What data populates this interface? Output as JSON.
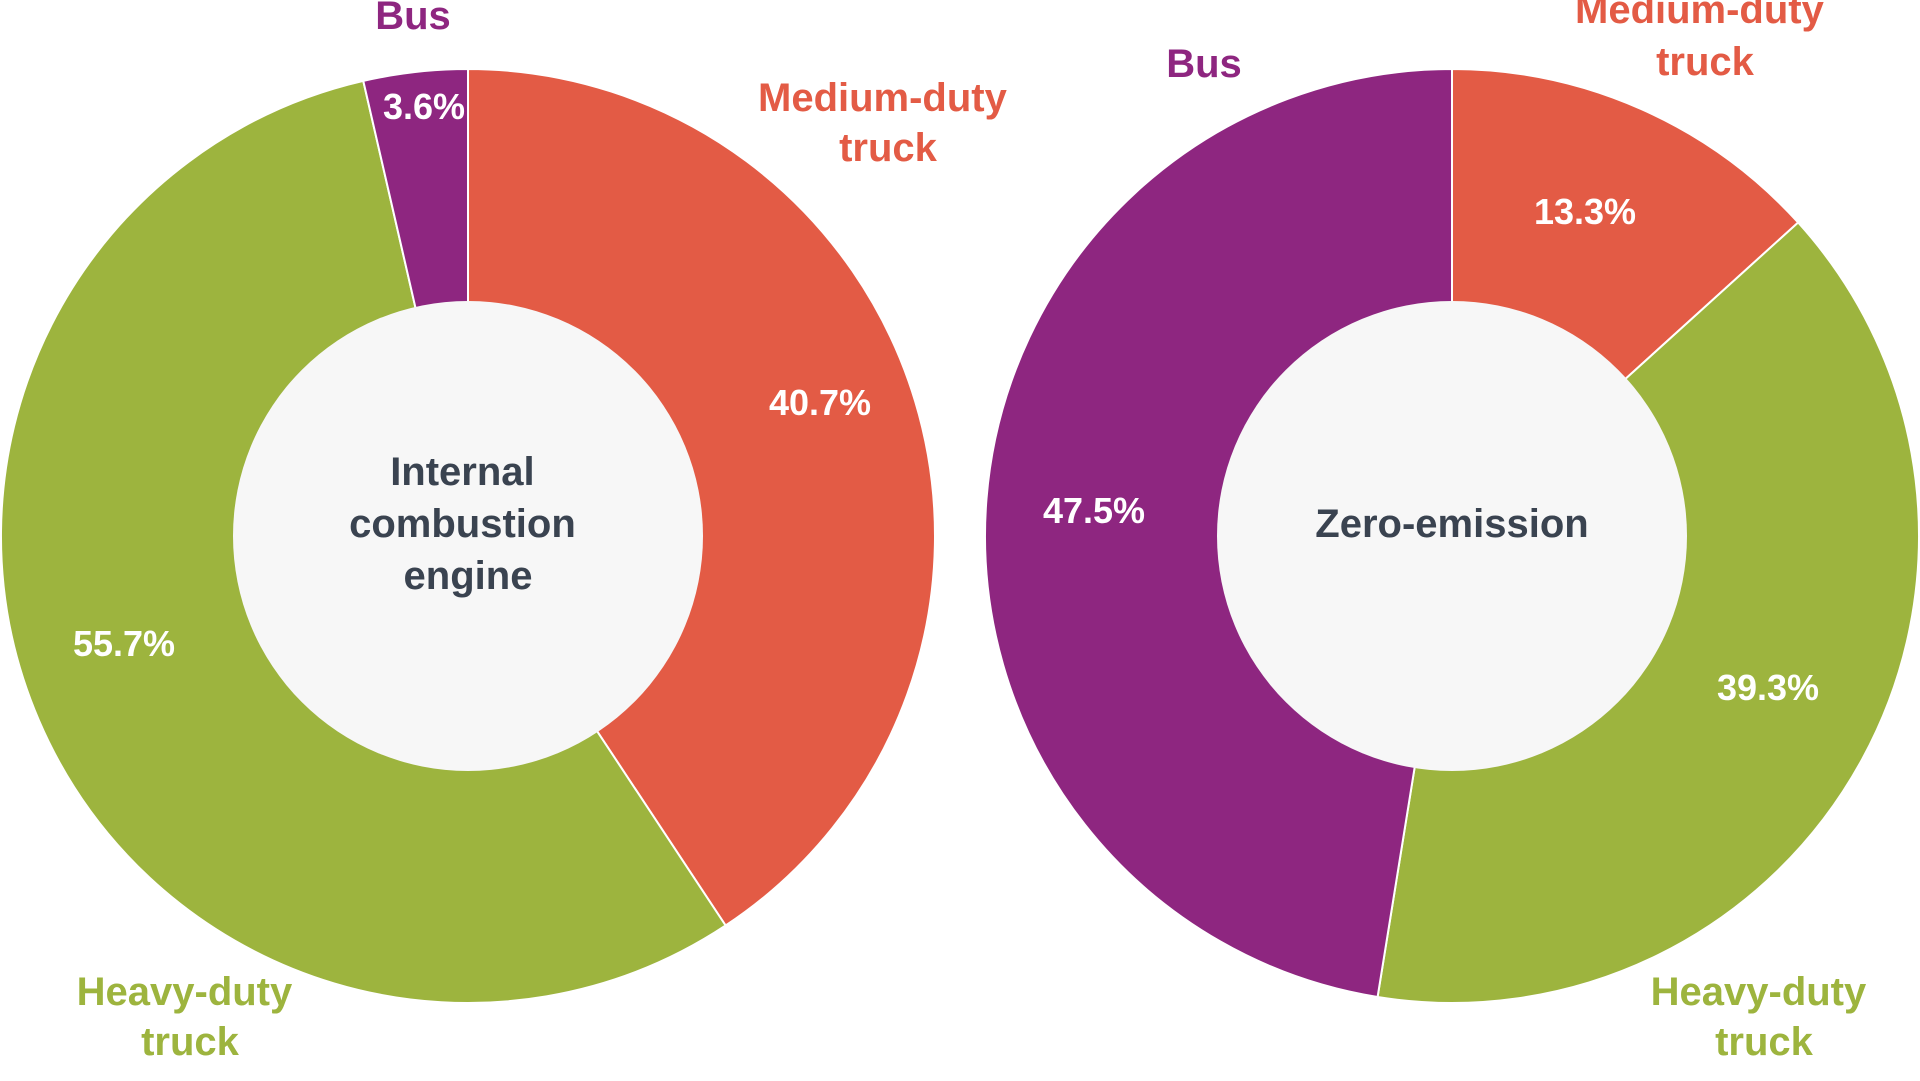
{
  "colors": {
    "medium_duty": "#E35B45",
    "heavy_duty": "#9DB43E",
    "bus": "#8E2680",
    "center_fill": "#F7F7F7",
    "center_text": "#3A4350",
    "percent_text": "#FFFFFF"
  },
  "chart_data": [
    {
      "type": "pie",
      "variant": "donut",
      "center_label": [
        "Internal",
        "combustion",
        "engine"
      ],
      "series": [
        {
          "name": "Medium-duty truck",
          "label_lines": [
            "Medium-duty",
            "truck"
          ],
          "value": 40.7,
          "value_label": "40.7%",
          "color": "#E35B45"
        },
        {
          "name": "Heavy-duty truck",
          "label_lines": [
            "Heavy-duty",
            "truck"
          ],
          "value": 55.7,
          "value_label": "55.7%",
          "color": "#9DB43E"
        },
        {
          "name": "Bus",
          "label_lines": [
            "Bus"
          ],
          "value": 3.6,
          "value_label": "3.6%",
          "color": "#8E2680"
        }
      ]
    },
    {
      "type": "pie",
      "variant": "donut",
      "center_label": [
        "Zero-emission"
      ],
      "series": [
        {
          "name": "Medium-duty truck",
          "label_lines": [
            "Medium-duty",
            "truck"
          ],
          "value": 13.3,
          "value_label": "13.3%",
          "color": "#E35B45"
        },
        {
          "name": "Heavy-duty truck",
          "label_lines": [
            "Heavy-duty",
            "truck"
          ],
          "value": 39.3,
          "value_label": "39.3%",
          "color": "#9DB43E"
        },
        {
          "name": "Bus",
          "label_lines": [
            "Bus"
          ],
          "value": 47.5,
          "value_label": "47.5%",
          "color": "#8E2680"
        }
      ]
    }
  ]
}
